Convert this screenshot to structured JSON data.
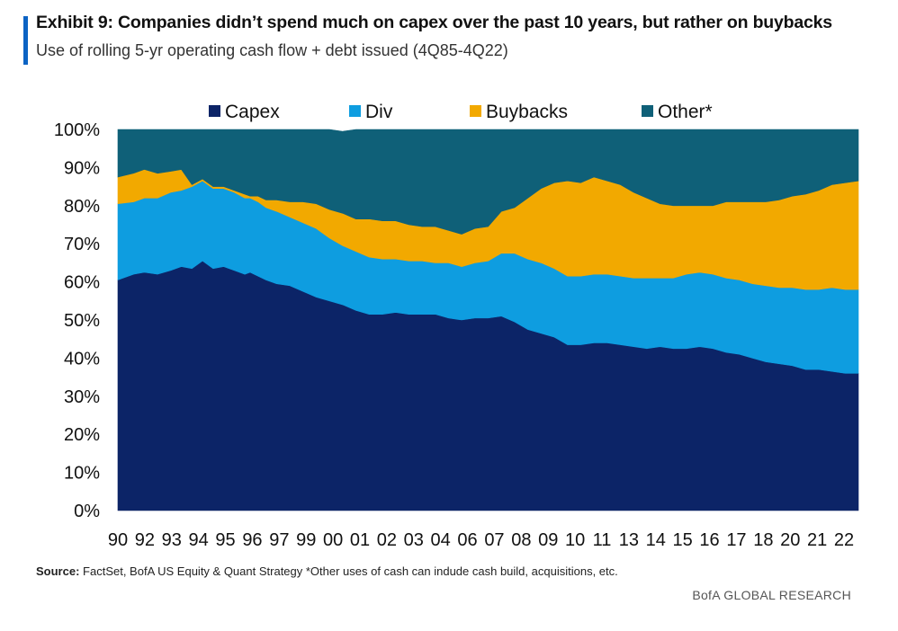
{
  "header": {
    "title": "Exhibit 9: Companies didn’t spend much on capex over the past 10 years, but rather on buybacks",
    "subtitle": "Use of rolling 5-yr operating cash flow + debt issued (4Q85-4Q22)"
  },
  "footer": {
    "source_label": "Source:",
    "source_text": "FactSet, BofA US Equity & Quant Strategy *Other uses of cash can indude cash build, acquisitions,  etc.",
    "brand": "BofA GLOBAL RESEARCH"
  },
  "chart_data": {
    "type": "area",
    "stacked": true,
    "title": "Exhibit 9: Companies didn’t spend much on capex over the past 10 years, but rather on buybacks",
    "subtitle": "Use of rolling 5-yr operating cash flow + debt issued (4Q85-4Q22)",
    "ylim": [
      0,
      100
    ],
    "y_ticks": [
      "0%",
      "10%",
      "20%",
      "30%",
      "40%",
      "50%",
      "60%",
      "70%",
      "80%",
      "90%",
      "100%"
    ],
    "x_tick_labels": [
      "90",
      "92",
      "93",
      "94",
      "95",
      "96",
      "97",
      "99",
      "00",
      "01",
      "02",
      "03",
      "04",
      "06",
      "07",
      "08",
      "09",
      "10",
      "11",
      "13",
      "14",
      "15",
      "16",
      "17",
      "18",
      "20",
      "21",
      "22"
    ],
    "legend_position": "top",
    "grid": false,
    "x": [
      0,
      0.6,
      1.0,
      1.5,
      2.0,
      2.4,
      2.8,
      3.2,
      3.6,
      4.0,
      4.4,
      4.8,
      5.0,
      5.3,
      5.6,
      6,
      6.5,
      7,
      7.5,
      8,
      8.5,
      9,
      9.5,
      10,
      10.5,
      11,
      11.5,
      12,
      12.5,
      13,
      13.5,
      14,
      14.5,
      15,
      15.5,
      16,
      16.5,
      17,
      17.5,
      18,
      18.5,
      19,
      19.5,
      20,
      20.5,
      21,
      21.5,
      22,
      22.5,
      23,
      23.5,
      24,
      24.5,
      25,
      25.5,
      26,
      26.5,
      27,
      27.5,
      28
    ],
    "series": [
      {
        "name": "Capex",
        "color": "#0c2467",
        "values": [
          60.5,
          62,
          62.5,
          62,
          63,
          64,
          63.5,
          65.5,
          63.5,
          64,
          63,
          62,
          62.5,
          61.5,
          60.5,
          59.5,
          59,
          57.5,
          56,
          55,
          54,
          52.5,
          51.5,
          51.5,
          52,
          51.5,
          51.5,
          51.5,
          50.5,
          50,
          50.5,
          50.5,
          51,
          49.5,
          47.5,
          46.5,
          45.5,
          43.5,
          43.5,
          44,
          44,
          43.5,
          43,
          42.5,
          43,
          42.5,
          42.5,
          43,
          42.5,
          41.5,
          41,
          40,
          39,
          38.5,
          38,
          37,
          37,
          36.5,
          36,
          36
        ]
      },
      {
        "name": "Div",
        "color": "#0e9de0",
        "values": [
          20,
          19,
          19.5,
          20,
          20.5,
          20,
          21.5,
          21,
          21,
          20.5,
          20.5,
          20,
          19.5,
          19.5,
          19,
          19,
          18,
          18,
          18,
          16.5,
          15.5,
          15.5,
          15,
          14.5,
          14,
          14,
          14,
          13.5,
          14.5,
          14,
          14.5,
          15,
          16.5,
          18,
          18.5,
          18.5,
          18,
          18,
          18,
          18,
          18,
          18,
          18,
          18.5,
          18,
          18.5,
          19.5,
          19.5,
          19.5,
          19.5,
          19.5,
          19.5,
          20,
          20,
          20.5,
          21,
          21,
          22,
          22,
          22
        ]
      },
      {
        "name": "Buybacks",
        "color": "#f2a900",
        "values": [
          7,
          7.5,
          7.5,
          6.5,
          5.5,
          5.5,
          0.5,
          0.5,
          0.5,
          0.5,
          0.5,
          1,
          0.5,
          1.5,
          2,
          3,
          4,
          5.5,
          6.5,
          7.5,
          8.5,
          8.5,
          10,
          10,
          10,
          9.5,
          9,
          9.5,
          8.5,
          8.5,
          9,
          9,
          11,
          12,
          16,
          19.5,
          22.5,
          25,
          24.5,
          25.5,
          24.5,
          24,
          22.5,
          21,
          19.5,
          19,
          18,
          17.5,
          18,
          20,
          20.5,
          21.5,
          22,
          23,
          24,
          25,
          26,
          27,
          28,
          28.5
        ]
      },
      {
        "name": "Other*",
        "color": "#0f6078",
        "values": [
          12.5,
          11.5,
          10.5,
          11.5,
          11,
          10.5,
          14.5,
          13,
          15,
          15,
          16,
          17,
          17.5,
          17.5,
          18.5,
          18.5,
          19,
          19,
          19.5,
          21,
          21.5,
          23.5,
          23.5,
          24,
          24,
          25,
          25.5,
          25.5,
          26.5,
          27.5,
          26,
          25.5,
          21.5,
          20.5,
          18,
          15.5,
          14,
          13.5,
          14,
          12.5,
          13.5,
          14.5,
          16.5,
          18,
          19.5,
          20,
          20,
          20,
          20,
          19,
          19,
          19,
          19,
          18.5,
          17.5,
          17,
          16,
          14.5,
          14,
          13.5
        ]
      }
    ]
  }
}
